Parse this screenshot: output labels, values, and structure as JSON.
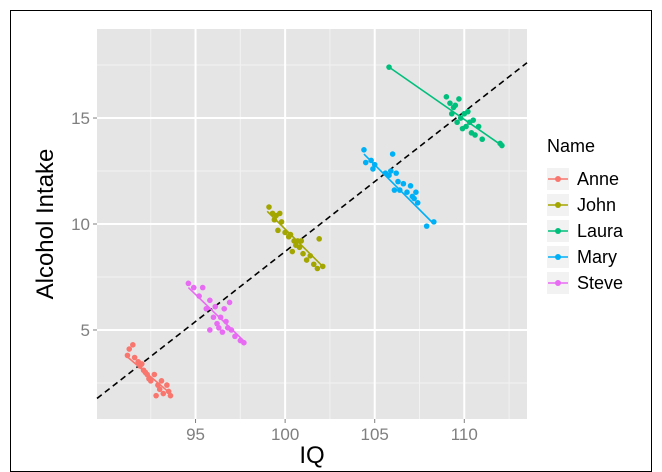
{
  "chart_data": {
    "type": "scatter",
    "xlabel": "IQ",
    "ylabel": "Alcohol Intake",
    "xlim": [
      89.5,
      113.5
    ],
    "ylim": [
      0.8,
      19.2
    ],
    "x_ticks": [
      95,
      100,
      105,
      110
    ],
    "y_ticks": [
      5,
      10,
      15
    ],
    "x_tick_labels": [
      "95",
      "100",
      "105",
      "110"
    ],
    "y_tick_labels": [
      "5",
      "10",
      "15"
    ],
    "grid": true,
    "legend": {
      "title": "Name",
      "position": "right"
    },
    "reference_line": {
      "style": "dashed",
      "color": "#000000",
      "slope": 0.66,
      "intercept": -57.3
    },
    "series": [
      {
        "name": "Anne",
        "color": "#F8766D",
        "points": [
          [
            91.2,
            3.8
          ],
          [
            91.3,
            4.1
          ],
          [
            91.5,
            4.3
          ],
          [
            91.6,
            3.7
          ],
          [
            91.8,
            3.5
          ],
          [
            91.9,
            3.3
          ],
          [
            92.0,
            3.4
          ],
          [
            92.1,
            3.1
          ],
          [
            92.2,
            3.0
          ],
          [
            92.3,
            2.9
          ],
          [
            92.4,
            2.7
          ],
          [
            92.5,
            2.6
          ],
          [
            92.7,
            2.9
          ],
          [
            92.9,
            2.4
          ],
          [
            93.0,
            2.2
          ],
          [
            93.1,
            2.6
          ],
          [
            93.2,
            2.0
          ],
          [
            93.4,
            2.4
          ],
          [
            93.5,
            2.1
          ],
          [
            93.6,
            1.9
          ],
          [
            92.8,
            1.9
          ]
        ],
        "fit": [
          [
            91.1,
            3.8
          ],
          [
            93.6,
            2.0
          ]
        ]
      },
      {
        "name": "John",
        "color": "#A3A500",
        "points": [
          [
            99.1,
            10.8
          ],
          [
            99.3,
            10.5
          ],
          [
            99.4,
            10.2
          ],
          [
            99.5,
            10.4
          ],
          [
            99.6,
            9.7
          ],
          [
            99.7,
            10.5
          ],
          [
            99.8,
            10.1
          ],
          [
            100.0,
            9.6
          ],
          [
            100.2,
            9.4
          ],
          [
            100.3,
            9.5
          ],
          [
            100.4,
            8.7
          ],
          [
            100.5,
            9.2
          ],
          [
            100.6,
            9.0
          ],
          [
            100.7,
            9.2
          ],
          [
            100.8,
            8.9
          ],
          [
            100.9,
            9.2
          ],
          [
            101.0,
            8.6
          ],
          [
            101.2,
            8.3
          ],
          [
            101.4,
            8.5
          ],
          [
            101.6,
            8.1
          ],
          [
            101.8,
            7.9
          ],
          [
            101.9,
            9.3
          ],
          [
            102.1,
            8.0
          ]
        ],
        "fit": [
          [
            99.0,
            10.6
          ],
          [
            102.1,
            8.0
          ]
        ]
      },
      {
        "name": "Laura",
        "color": "#00BF7D",
        "points": [
          [
            105.8,
            17.4
          ],
          [
            109.0,
            16.0
          ],
          [
            109.2,
            15.7
          ],
          [
            109.3,
            15.2
          ],
          [
            109.4,
            15.5
          ],
          [
            109.5,
            15.6
          ],
          [
            109.6,
            14.8
          ],
          [
            109.7,
            15.9
          ],
          [
            109.8,
            15.0
          ],
          [
            109.9,
            14.5
          ],
          [
            110.0,
            15.2
          ],
          [
            110.1,
            14.6
          ],
          [
            110.2,
            15.3
          ],
          [
            110.3,
            14.8
          ],
          [
            110.4,
            14.3
          ],
          [
            110.5,
            14.9
          ],
          [
            110.6,
            14.2
          ],
          [
            110.8,
            14.6
          ],
          [
            111.0,
            14.0
          ],
          [
            112.0,
            13.8
          ],
          [
            112.1,
            13.7
          ]
        ],
        "fit": [
          [
            105.8,
            17.4
          ],
          [
            112.1,
            13.7
          ]
        ]
      },
      {
        "name": "Mary",
        "color": "#00B0F6",
        "points": [
          [
            104.4,
            13.5
          ],
          [
            104.5,
            12.9
          ],
          [
            104.8,
            13.0
          ],
          [
            104.9,
            12.6
          ],
          [
            105.0,
            12.8
          ],
          [
            105.6,
            12.4
          ],
          [
            105.8,
            12.3
          ],
          [
            105.9,
            12.5
          ],
          [
            106.0,
            13.3
          ],
          [
            106.1,
            11.6
          ],
          [
            106.2,
            12.4
          ],
          [
            106.3,
            12.0
          ],
          [
            106.4,
            11.6
          ],
          [
            106.6,
            11.9
          ],
          [
            106.8,
            11.5
          ],
          [
            107.0,
            11.8
          ],
          [
            107.1,
            11.3
          ],
          [
            107.2,
            11.2
          ],
          [
            107.3,
            11.5
          ],
          [
            107.4,
            11.0
          ],
          [
            107.9,
            9.9
          ],
          [
            108.3,
            10.1
          ]
        ],
        "fit": [
          [
            104.4,
            13.3
          ],
          [
            108.3,
            10.0
          ]
        ]
      },
      {
        "name": "Steve",
        "color": "#E76BF3",
        "points": [
          [
            94.6,
            7.2
          ],
          [
            94.9,
            7.0
          ],
          [
            95.2,
            6.6
          ],
          [
            95.4,
            7.0
          ],
          [
            95.6,
            6.0
          ],
          [
            95.8,
            6.4
          ],
          [
            96.0,
            5.6
          ],
          [
            96.1,
            6.1
          ],
          [
            96.2,
            5.3
          ],
          [
            96.3,
            5.1
          ],
          [
            96.4,
            5.6
          ],
          [
            96.5,
            4.9
          ],
          [
            96.6,
            6.0
          ],
          [
            96.7,
            5.4
          ],
          [
            96.8,
            5.1
          ],
          [
            96.9,
            6.3
          ],
          [
            97.0,
            5.0
          ],
          [
            97.2,
            4.7
          ],
          [
            97.5,
            4.5
          ],
          [
            97.7,
            4.4
          ],
          [
            95.8,
            5.0
          ]
        ],
        "fit": [
          [
            94.6,
            7.0
          ],
          [
            97.8,
            4.4
          ]
        ]
      }
    ]
  }
}
